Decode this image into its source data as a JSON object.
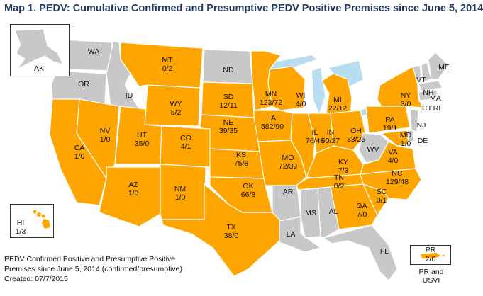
{
  "title": "Map 1.  PEDV:  Cumulative Confirmed and Presumptive PEDV Positive Premises since June 5, 2014",
  "legend": {
    "line1": "PEDV Confirmed Positive and Presumptive Positive",
    "line2": "Premises since June 5, 2014 (confirmed/presumptive)",
    "created": "Created: 07/7/2015"
  },
  "colors": {
    "positive": "#ffa500",
    "negative": "#c8c8c8",
    "water": "#b8dcf0",
    "border": "#ffffff"
  },
  "states": [
    {
      "abbr": "WA",
      "value": "",
      "status": "negative"
    },
    {
      "abbr": "OR",
      "value": "",
      "status": "negative"
    },
    {
      "abbr": "ID",
      "value": "",
      "status": "negative"
    },
    {
      "abbr": "MT",
      "value": "0/2",
      "status": "positive"
    },
    {
      "abbr": "ND",
      "value": "",
      "status": "negative"
    },
    {
      "abbr": "MN",
      "value": "123/72",
      "status": "positive"
    },
    {
      "abbr": "WI",
      "value": "4/0",
      "status": "positive"
    },
    {
      "abbr": "MI",
      "value": "22/12",
      "status": "positive"
    },
    {
      "abbr": "NY",
      "value": "3/0",
      "status": "positive"
    },
    {
      "abbr": "VT",
      "value": "",
      "status": "negative"
    },
    {
      "abbr": "NH",
      "value": "",
      "status": "negative"
    },
    {
      "abbr": "ME",
      "value": "",
      "status": "negative"
    },
    {
      "abbr": "MA",
      "value": "",
      "status": "negative"
    },
    {
      "abbr": "CT",
      "value": "",
      "status": "negative"
    },
    {
      "abbr": "RI",
      "value": "",
      "status": "negative"
    },
    {
      "abbr": "WY",
      "value": "5/2",
      "status": "positive"
    },
    {
      "abbr": "SD",
      "value": "12/11",
      "status": "positive"
    },
    {
      "abbr": "IA",
      "value": "582/90",
      "status": "positive"
    },
    {
      "abbr": "NE",
      "value": "39/35",
      "status": "positive"
    },
    {
      "abbr": "NV",
      "value": "1/0",
      "status": "positive"
    },
    {
      "abbr": "UT",
      "value": "35/0",
      "status": "positive"
    },
    {
      "abbr": "CA",
      "value": "1/0",
      "status": "positive"
    },
    {
      "abbr": "CO",
      "value": "4/1",
      "status": "positive"
    },
    {
      "abbr": "KS",
      "value": "75/8",
      "status": "positive"
    },
    {
      "abbr": "MO",
      "value": "72/39",
      "status": "positive"
    },
    {
      "abbr": "IL",
      "value": "76/46",
      "status": "positive"
    },
    {
      "abbr": "IN",
      "value": "60/27",
      "status": "positive"
    },
    {
      "abbr": "OH",
      "value": "33/25",
      "status": "positive"
    },
    {
      "abbr": "PA",
      "value": "19/1",
      "status": "positive"
    },
    {
      "abbr": "NJ",
      "value": "",
      "status": "negative"
    },
    {
      "abbr": "DE",
      "value": "",
      "status": "negative"
    },
    {
      "abbr": "MD",
      "value": "1/0",
      "status": "positive"
    },
    {
      "abbr": "WV",
      "value": "",
      "status": "negative"
    },
    {
      "abbr": "VA",
      "value": "4/0",
      "status": "positive"
    },
    {
      "abbr": "KY",
      "value": "7/3",
      "status": "positive"
    },
    {
      "abbr": "TN",
      "value": "0/2",
      "status": "positive"
    },
    {
      "abbr": "NC",
      "value": "129/48",
      "status": "positive"
    },
    {
      "abbr": "SC",
      "value": "0/1",
      "status": "positive"
    },
    {
      "abbr": "GA",
      "value": "7/0",
      "status": "positive"
    },
    {
      "abbr": "AZ",
      "value": "1/0",
      "status": "positive"
    },
    {
      "abbr": "NM",
      "value": "1/0",
      "status": "positive"
    },
    {
      "abbr": "OK",
      "value": "66/8",
      "status": "positive"
    },
    {
      "abbr": "TX",
      "value": "38/0",
      "status": "positive"
    },
    {
      "abbr": "AR",
      "value": "",
      "status": "negative"
    },
    {
      "abbr": "LA",
      "value": "",
      "status": "negative"
    },
    {
      "abbr": "MS",
      "value": "",
      "status": "negative"
    },
    {
      "abbr": "AL",
      "value": "",
      "status": "negative"
    },
    {
      "abbr": "FL",
      "value": "",
      "status": "negative"
    }
  ],
  "insets": {
    "ak": {
      "abbr": "AK",
      "value": "",
      "status": "negative"
    },
    "hi": {
      "abbr": "HI",
      "value": "1/3",
      "status": "positive"
    },
    "pr": {
      "abbr": "PR",
      "value": "2/0",
      "status": "positive",
      "caption": "PR and USVI"
    }
  }
}
